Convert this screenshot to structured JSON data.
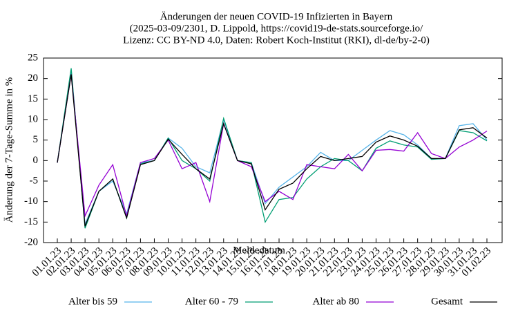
{
  "chart_data": {
    "type": "line",
    "title": [
      "Änderungen der neuen COVID-19 Infizierten in Bayern",
      "(2025-03-09/2301, D. Lippold, https://covid19-de-stats.sourceforge.io/",
      "Lizenz: CC BY-ND 4.0, Daten: Robert Koch-Institut (RKI), dl-de/by-2-0)"
    ],
    "x_label": "Meldedatum",
    "y_label": "Änderung der 7-Tage-Summe in %",
    "categories": [
      "01.01.23",
      "02.01.23",
      "03.01.23",
      "04.01.23",
      "05.01.23",
      "06.01.23",
      "07.01.23",
      "08.01.23",
      "09.01.23",
      "10.01.23",
      "11.01.23",
      "12.01.23",
      "13.01.23",
      "14.01.23",
      "15.01.23",
      "16.01.23",
      "17.01.23",
      "18.01.23",
      "19.01.23",
      "20.01.23",
      "21.01.23",
      "22.01.23",
      "23.01.23",
      "24.01.23",
      "25.01.23",
      "26.01.23",
      "27.01.23",
      "28.01.23",
      "29.01.23",
      "30.01.23",
      "31.01.23",
      "01.02.23"
    ],
    "series": [
      {
        "name": "Alter bis 59",
        "color": "#56b4e9",
        "values": [
          -0.5,
          22,
          -15.5,
          -7.5,
          -5,
          -13,
          -0.5,
          0,
          5.5,
          3,
          -1.5,
          -3,
          10,
          0,
          -0.5,
          -10.5,
          -6.5,
          -4,
          -1.5,
          2,
          0,
          0,
          2.5,
          5,
          7.3,
          6.3,
          3.8,
          0.5,
          0.5,
          8.5,
          9,
          5
        ]
      },
      {
        "name": "Alter 60 - 79",
        "color": "#009e73",
        "values": [
          -0.5,
          22.5,
          -16.5,
          -7.5,
          -4.5,
          -14,
          -0.8,
          0,
          5.5,
          0,
          -2,
          -5,
          10.3,
          0,
          -0.5,
          -15,
          -9.5,
          -9,
          -4.5,
          -1.5,
          0.5,
          0,
          -2.5,
          3,
          4.8,
          3.8,
          3.3,
          0.3,
          0.5,
          7.3,
          6.8,
          4.8
        ]
      },
      {
        "name": "Alter ab 80",
        "color": "#9400d3",
        "values": [
          -0.5,
          21,
          -13.5,
          -6,
          -1,
          -13.5,
          -0.5,
          0.5,
          5,
          -2,
          -0.5,
          -10,
          9,
          0,
          -1.5,
          -10,
          -7.5,
          -9.5,
          -1,
          -1.5,
          -2,
          1.5,
          -2.5,
          2.5,
          2.7,
          2.3,
          6.8,
          1.7,
          0.5,
          3.3,
          5,
          7.2
        ]
      },
      {
        "name": "Gesamt",
        "color": "#000000",
        "values": [
          -0.5,
          21,
          -16,
          -7.5,
          -4.5,
          -14,
          -1,
          0,
          5.2,
          1.5,
          -2,
          -4.5,
          9,
          0,
          -0.8,
          -12,
          -7,
          -5.5,
          -2,
          1,
          0,
          0.5,
          1,
          4.5,
          6,
          5,
          3.5,
          0.5,
          0.5,
          7.5,
          8,
          5.5
        ]
      }
    ],
    "ylim": [
      -20,
      25
    ],
    "yticks": [
      -20,
      -15,
      -10,
      -5,
      0,
      5,
      10,
      15,
      20,
      25
    ],
    "grid": false
  }
}
